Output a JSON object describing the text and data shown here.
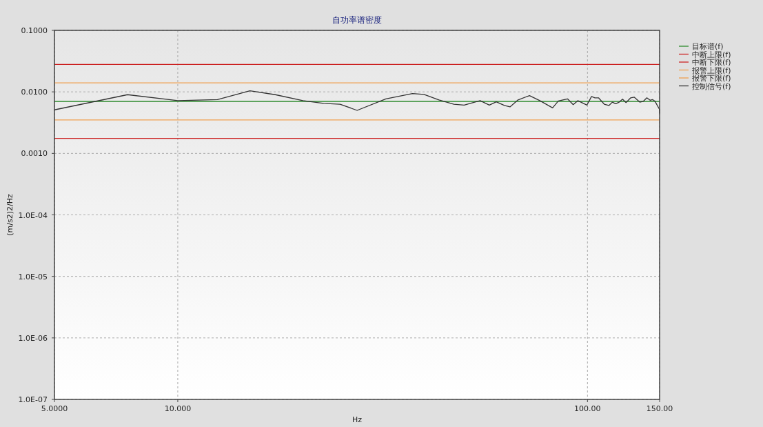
{
  "chart_data": {
    "type": "line",
    "title": "自功率谱密度",
    "xlabel": "Hz",
    "ylabel": "(m/s2)2/Hz",
    "log": "xy",
    "grid": true,
    "legend": "right",
    "xlim": [
      5,
      150
    ],
    "ylim": [
      1e-07,
      0.1
    ],
    "xticks": [
      {
        "value": 5,
        "label": "5.0000"
      },
      {
        "value": 10,
        "label": "10.000"
      },
      {
        "value": 100,
        "label": "100.00"
      },
      {
        "value": 150,
        "label": "150.00"
      }
    ],
    "yticks": [
      {
        "value": 1e-07,
        "label": "1.0E-07"
      },
      {
        "value": 1e-06,
        "label": "1.0E-06"
      },
      {
        "value": 1e-05,
        "label": "1.0E-05"
      },
      {
        "value": 0.0001,
        "label": "1.0E-04"
      },
      {
        "value": 0.001,
        "label": "0.0010"
      },
      {
        "value": 0.01,
        "label": "0.0100"
      },
      {
        "value": 0.1,
        "label": "0.1000"
      }
    ],
    "series": [
      {
        "name": "目标谱(f)",
        "color": "#2e8b2e",
        "x": [
          5,
          150
        ],
        "values": [
          0.007,
          0.007
        ]
      },
      {
        "name": "中断上限(f)",
        "color": "#cc2222",
        "x": [
          5,
          150
        ],
        "values": [
          0.028,
          0.028
        ]
      },
      {
        "name": "中断下限(f)",
        "color": "#cc2222",
        "x": [
          5,
          150
        ],
        "values": [
          0.00175,
          0.00175
        ]
      },
      {
        "name": "报警上限(f)",
        "color": "#f0a050",
        "x": [
          5,
          150
        ],
        "values": [
          0.014,
          0.014
        ]
      },
      {
        "name": "报警下限(f)",
        "color": "#f0a050",
        "x": [
          5,
          150
        ],
        "values": [
          0.0035,
          0.0035
        ]
      },
      {
        "name": "控制信号(f)",
        "color": "#333333",
        "x": [
          5.0,
          7.54,
          10.0,
          12.5,
          15.0,
          17.3,
          20.2,
          22.7,
          24.9,
          27.4,
          32.2,
          37.4,
          39.9,
          43.4,
          47.2,
          50.0,
          54.7,
          57.6,
          59.9,
          62.7,
          64.7,
          67.7,
          72.2,
          76.5,
          82.2,
          84.9,
          89.4,
          92.3,
          94.7,
          99.7,
          102.3,
          104.3,
          106.4,
          109.9,
          112.8,
          115.0,
          117.2,
          119.5,
          121.8,
          124.2,
          127.5,
          130.0,
          134.2,
          136.8,
          139.6,
          142.2,
          144.1,
          146.0,
          149.9,
          150
        ],
        "values": [
          0.0051,
          0.009,
          0.0072,
          0.0075,
          0.0104,
          0.009,
          0.0072,
          0.0065,
          0.0063,
          0.005,
          0.0077,
          0.0094,
          0.0091,
          0.0074,
          0.0063,
          0.0061,
          0.0072,
          0.0061,
          0.0069,
          0.006,
          0.0057,
          0.0074,
          0.0087,
          0.0072,
          0.0055,
          0.0071,
          0.0077,
          0.0062,
          0.0072,
          0.0061,
          0.0084,
          0.008,
          0.008,
          0.0063,
          0.006,
          0.0068,
          0.0064,
          0.0068,
          0.0076,
          0.0067,
          0.008,
          0.0082,
          0.0068,
          0.007,
          0.008,
          0.0073,
          0.0075,
          0.0071,
          0.0052,
          0.0045
        ]
      }
    ]
  }
}
